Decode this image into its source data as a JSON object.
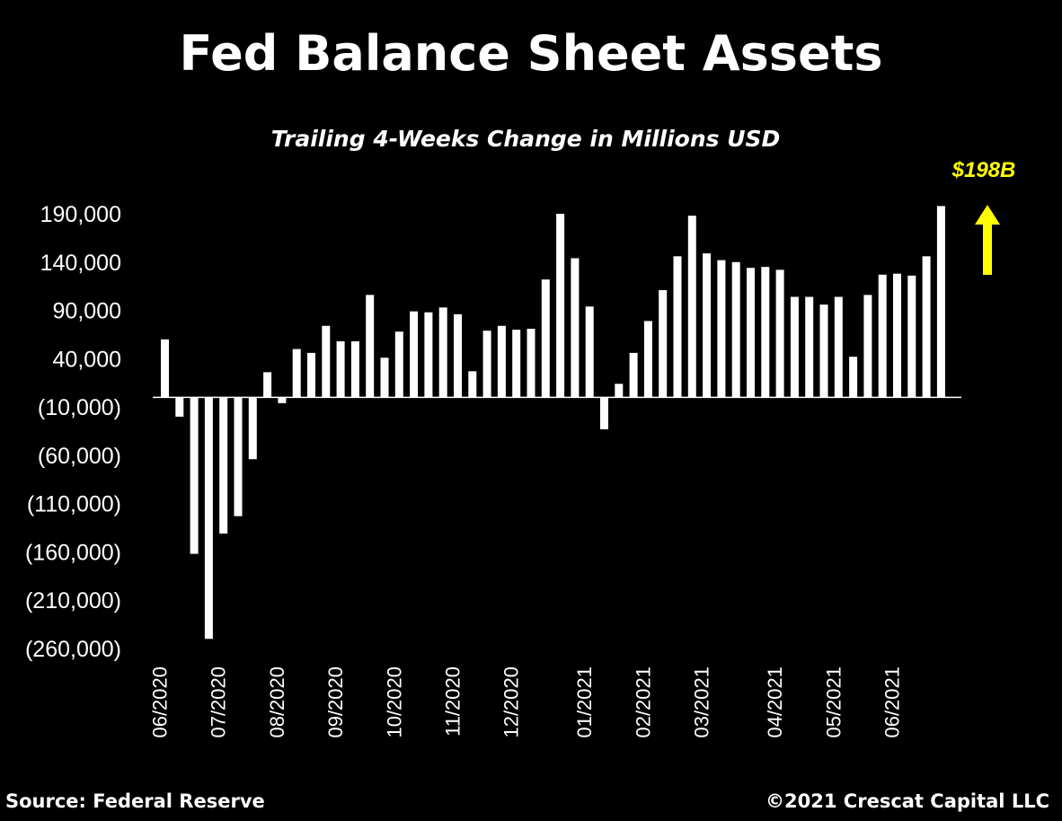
{
  "header": {
    "title": "Fed Balance Sheet Assets",
    "subtitle": "Trailing 4-Weeks Change in Millions USD"
  },
  "footer": {
    "source": "Source: Federal Reserve",
    "copyright": "©2021 Crescat Capital LLC"
  },
  "colors": {
    "background": "#000000",
    "bars": "#ffffff",
    "callout": "#ffff00"
  },
  "chart_data": {
    "type": "bar",
    "title": "Fed Balance Sheet Assets",
    "subtitle": "Trailing 4-Weeks Change in Millions USD",
    "xlabel": "",
    "ylabel": "",
    "ylim": [
      -260000,
      200000
    ],
    "grid": false,
    "legend": "none",
    "y_ticks": [
      190000,
      140000,
      90000,
      40000,
      -10000,
      -60000,
      -110000,
      -160000,
      -210000,
      -260000
    ],
    "y_tick_labels": [
      "190,000",
      "140,000",
      "90,000",
      "40,000",
      "(10,000)",
      "(60,000)",
      "(110,000)",
      "(160,000)",
      "(210,000)",
      "(260,000)"
    ],
    "x_tick_labels": [
      "06/2020",
      "07/2020",
      "08/2020",
      "09/2020",
      "10/2020",
      "11/2020",
      "12/2020",
      "01/2021",
      "02/2021",
      "03/2021",
      "04/2021",
      "05/2021",
      "06/2021"
    ],
    "x_tick_positions": [
      0,
      4,
      8,
      12,
      16,
      20,
      24,
      29,
      33,
      37,
      42,
      46,
      50
    ],
    "values": [
      60000,
      -20000,
      -162000,
      -250000,
      -141000,
      -123000,
      -64000,
      26000,
      -6000,
      50000,
      46000,
      74000,
      58000,
      58000,
      106000,
      41000,
      68000,
      89000,
      88000,
      93000,
      86000,
      27000,
      69000,
      74000,
      70000,
      71000,
      122000,
      190000,
      144000,
      94000,
      -33000,
      14000,
      46000,
      79000,
      111000,
      146000,
      188000,
      149000,
      142000,
      140000,
      134000,
      135000,
      132000,
      104000,
      104000,
      96000,
      104000,
      42000,
      106000,
      127000,
      128000,
      126000,
      146000,
      198000
    ],
    "annotation": {
      "text": "$198B",
      "arrow": "up"
    }
  }
}
